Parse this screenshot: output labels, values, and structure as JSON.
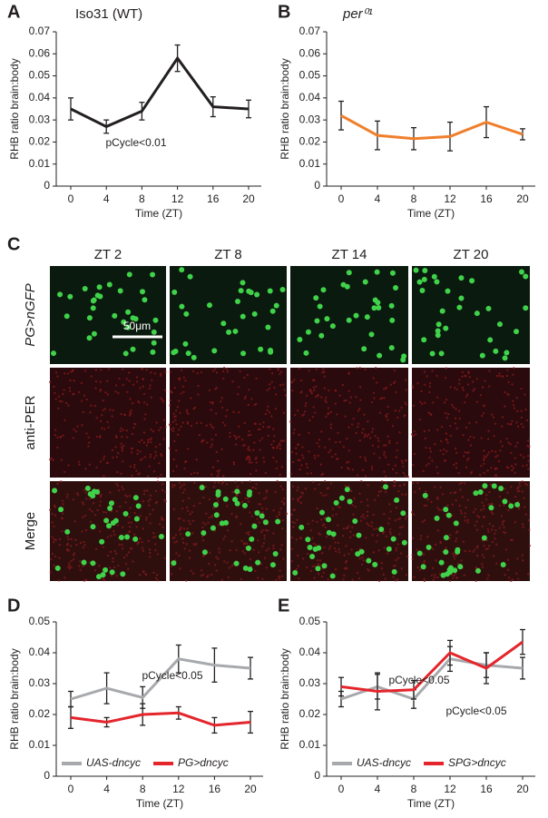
{
  "chart_data": [
    {
      "type": "line",
      "panel_label": "A",
      "title": "Iso31 (WT)",
      "x_label": "Time (ZT)",
      "y_label": "RHB ratio brain:body",
      "categories": [
        "0",
        "4",
        "8",
        "12",
        "16",
        "20"
      ],
      "ylim": [
        0,
        0.07
      ],
      "yticks": [
        0,
        0.01,
        0.02,
        0.03,
        0.04,
        0.05,
        0.06,
        0.07
      ],
      "annotations": [
        "pCycle<0.01"
      ],
      "series": [
        {
          "name": "Iso31",
          "color": "#231f20",
          "values": [
            0.035,
            0.027,
            0.034,
            0.058,
            0.036,
            0.035
          ],
          "errors": [
            0.005,
            0.003,
            0.004,
            0.006,
            0.0045,
            0.004
          ]
        }
      ]
    },
    {
      "type": "line",
      "panel_label": "B",
      "title": "per⁰¹",
      "x_label": "Time (ZT)",
      "y_label": "RHB ratio brain:body",
      "categories": [
        "0",
        "4",
        "8",
        "12",
        "16",
        "20"
      ],
      "ylim": [
        0,
        0.07
      ],
      "yticks": [
        0,
        0.01,
        0.02,
        0.03,
        0.04,
        0.05,
        0.06,
        0.07
      ],
      "annotations": [],
      "series": [
        {
          "name": "per⁰¹",
          "color": "#f07f2c",
          "values": [
            0.032,
            0.023,
            0.0215,
            0.0225,
            0.029,
            0.0235
          ],
          "errors": [
            0.0065,
            0.0065,
            0.005,
            0.0065,
            0.007,
            0.0025
          ]
        }
      ]
    },
    {
      "type": "line",
      "panel_label": "D",
      "x_label": "Time (ZT)",
      "y_label": "RHB ratio brain:body",
      "categories": [
        "0",
        "4",
        "8",
        "12",
        "16",
        "20"
      ],
      "ylim": [
        0,
        0.05
      ],
      "yticks": [
        0,
        0.01,
        0.02,
        0.03,
        0.04,
        0.05
      ],
      "annotations": [
        "pCycle<0.05"
      ],
      "legend": "bottom",
      "series": [
        {
          "name": "UAS-dncyc",
          "color": "#a7a9ac",
          "values": [
            0.025,
            0.0285,
            0.0255,
            0.038,
            0.036,
            0.035
          ],
          "errors": [
            0.0025,
            0.005,
            0.0035,
            0.0045,
            0.0055,
            0.0035
          ]
        },
        {
          "name": "PG>dncyc",
          "color": "#e4252c",
          "values": [
            0.019,
            0.0175,
            0.02,
            0.0205,
            0.0165,
            0.0175
          ],
          "errors": [
            0.0035,
            0.0015,
            0.0035,
            0.002,
            0.0025,
            0.0035
          ]
        }
      ]
    },
    {
      "type": "line",
      "panel_label": "E",
      "x_label": "Time (ZT)",
      "y_label": "RHB ratio brain:body",
      "categories": [
        "0",
        "4",
        "8",
        "12",
        "16",
        "20"
      ],
      "ylim": [
        0,
        0.05
      ],
      "yticks": [
        0,
        0.01,
        0.02,
        0.03,
        0.04,
        0.05
      ],
      "annotations": [
        "pCycle<0.05",
        "pCycle<0.05"
      ],
      "legend": "bottom",
      "series": [
        {
          "name": "UAS-dncyc",
          "color": "#a7a9ac",
          "values": [
            0.025,
            0.029,
            0.025,
            0.038,
            0.036,
            0.035
          ],
          "errors": [
            0.0025,
            0.004,
            0.003,
            0.004,
            0.004,
            0.0035
          ]
        },
        {
          "name": "SPG>dncyc",
          "color": "#e4252c",
          "values": [
            0.029,
            0.0275,
            0.028,
            0.04,
            0.035,
            0.0435
          ],
          "errors": [
            0.003,
            0.006,
            0.003,
            0.004,
            0.005,
            0.004
          ]
        }
      ]
    }
  ],
  "image_panel": {
    "panel_label": "C",
    "columns": [
      "ZT 2",
      "ZT 8",
      "ZT 14",
      "ZT 20"
    ],
    "rows": [
      "PG>nGFP",
      "anti-PER",
      "Merge"
    ],
    "scale_bar": "50μm"
  }
}
